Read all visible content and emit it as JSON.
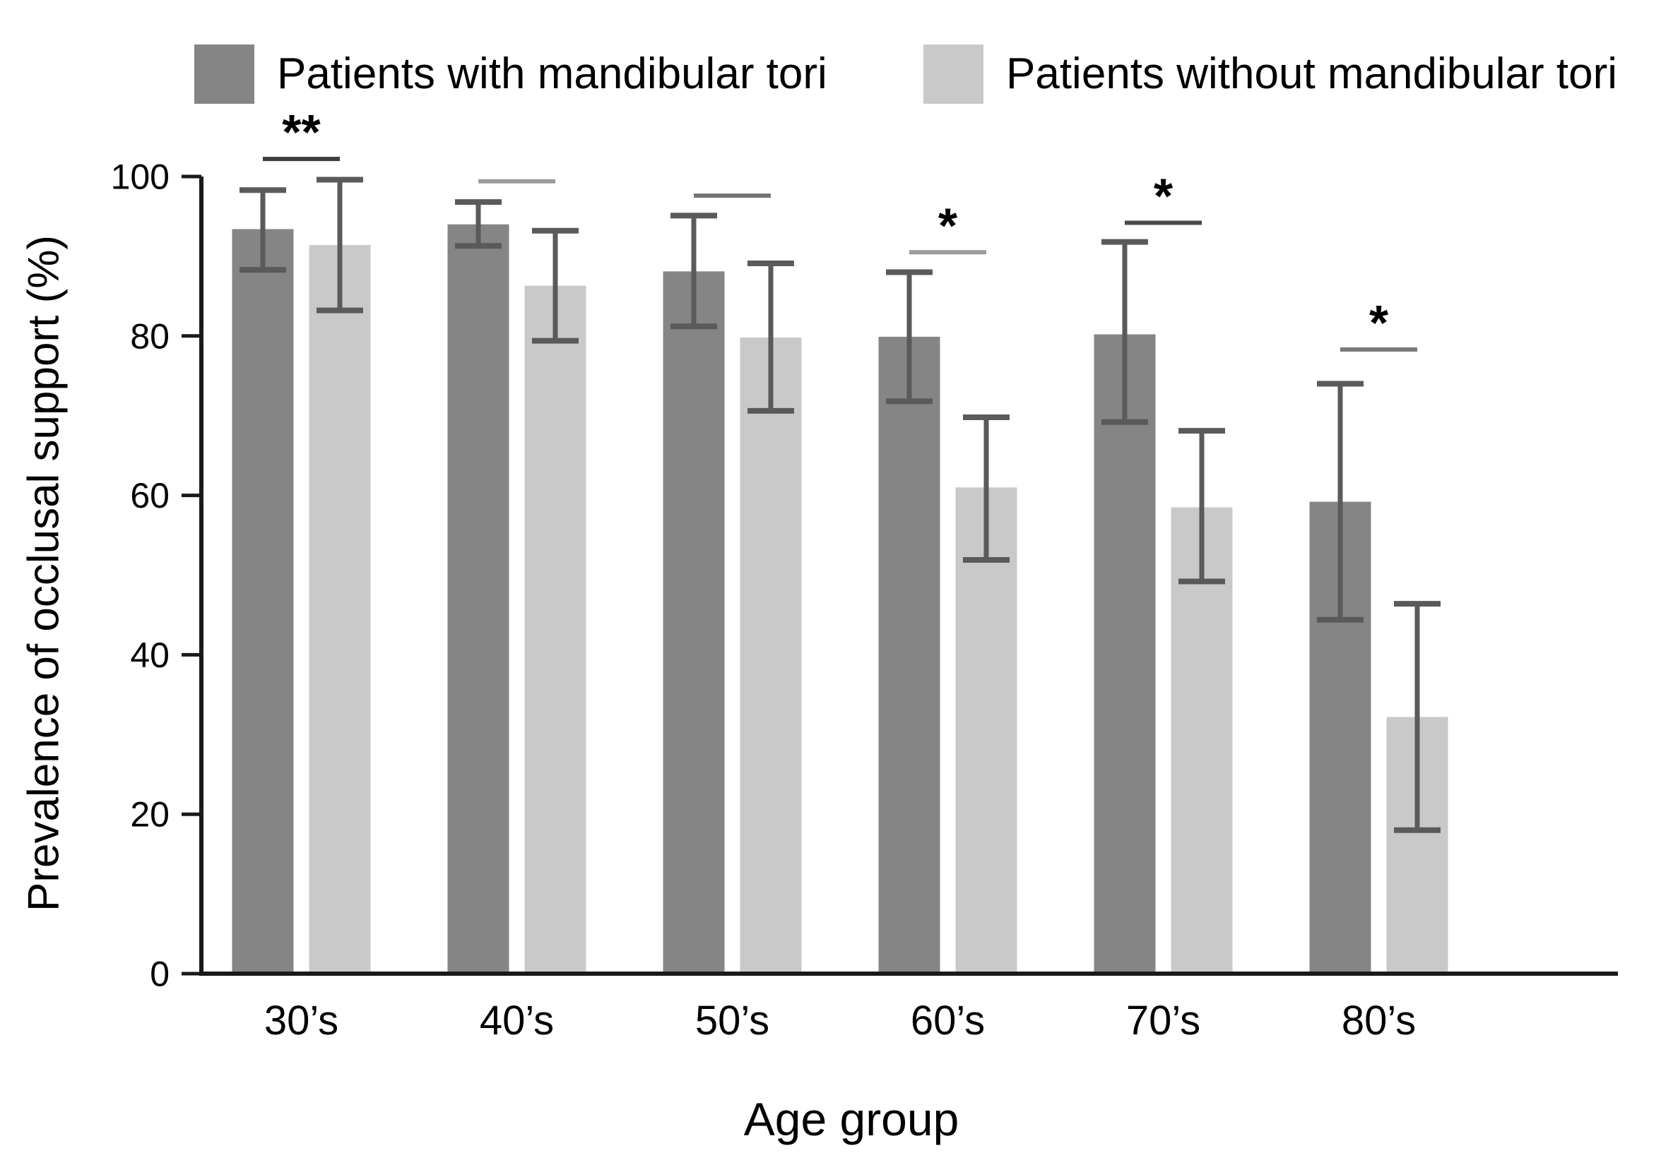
{
  "figure": {
    "background": "#ffffff"
  },
  "legend": {
    "items": [
      {
        "label": "Patients with mandibular tori",
        "color": "#858585"
      },
      {
        "label": "Patients without mandibular tori",
        "color": "#c9c9c9"
      }
    ]
  },
  "chart_data": {
    "type": "bar",
    "title": "",
    "xlabel": "Age group",
    "ylabel": "Prevalence of occlusal support (%)",
    "categories": [
      "30’s",
      "40’s",
      "50’s",
      "60’s",
      "70’s",
      "80’s"
    ],
    "y_ticks": [
      0,
      20,
      40,
      60,
      80,
      100
    ],
    "ylim": [
      0,
      100
    ],
    "grid": false,
    "legend_position": "top",
    "series": [
      {
        "name": "Patients with mandibular tori",
        "color": "#858585",
        "values": [
          93.4,
          94.0,
          88.1,
          79.9,
          80.2,
          59.2
        ],
        "error_low": [
          88.3,
          91.3,
          81.2,
          71.8,
          69.2,
          44.4
        ],
        "error_high": [
          98.3,
          96.8,
          95.1,
          88.0,
          91.8,
          74.0
        ]
      },
      {
        "name": "Patients without mandibular tori",
        "color": "#c9c9c9",
        "values": [
          91.4,
          86.3,
          79.8,
          61.0,
          58.5,
          32.2
        ],
        "error_low": [
          83.2,
          79.4,
          70.6,
          51.9,
          49.2,
          18.0
        ],
        "error_high": [
          99.6,
          93.2,
          89.1,
          69.8,
          68.1,
          46.4
        ]
      }
    ],
    "significance": [
      {
        "category": "30’s",
        "label": "**",
        "line_y": 102.2,
        "line_color": "#3c3c3c"
      },
      {
        "category": "40’s",
        "label": "",
        "line_y": 99.4,
        "line_color": "#9b9b9b"
      },
      {
        "category": "50’s",
        "label": "",
        "line_y": 97.6,
        "line_color": "#757575"
      },
      {
        "category": "60’s",
        "label": "*",
        "line_y": 90.5,
        "line_color": "#9b9b9b"
      },
      {
        "category": "70’s",
        "label": "*",
        "line_y": 94.2,
        "line_color": "#4a4a4a"
      },
      {
        "category": "80’s",
        "label": "*",
        "line_y": 78.3,
        "line_color": "#7a7a7a"
      }
    ],
    "error_bar_color": "#5a5a5a",
    "axis_color": "#1a1a1a",
    "text_color": "#000000"
  }
}
